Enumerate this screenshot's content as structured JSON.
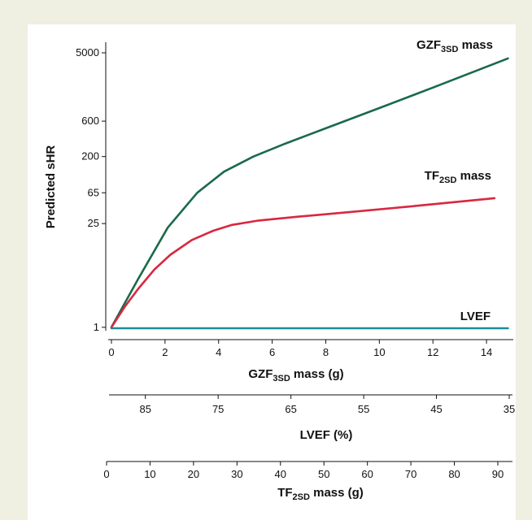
{
  "chart_data": {
    "type": "line",
    "title": "",
    "ylabel": "Predicted sHR",
    "yscale": "log",
    "yticks": [
      1,
      25,
      65,
      200,
      600,
      5000
    ],
    "grid": false,
    "axes": [
      {
        "id": "gzf",
        "label_main": "GZF",
        "label_sub": "3SD",
        "label_rest": " mass (g)",
        "min": 0,
        "max": 15,
        "ticks": [
          0,
          2,
          4,
          6,
          8,
          10,
          12,
          14
        ]
      },
      {
        "id": "lvef",
        "label_main": "LVEF (%)",
        "label_sub": "",
        "label_rest": "",
        "min": 90,
        "max": 35,
        "ticks": [
          85,
          75,
          65,
          55,
          45,
          35
        ]
      },
      {
        "id": "tf",
        "label_main": "TF",
        "label_sub": "2SD",
        "label_rest": " mass (g)",
        "min": 0,
        "max": 92,
        "ticks": [
          0,
          10,
          20,
          30,
          40,
          50,
          60,
          70,
          80,
          90
        ]
      }
    ],
    "series": [
      {
        "label_main": "GZF",
        "label_sub": "3SD",
        "label_rest": " mass",
        "color": "#1a6a4a",
        "x": [
          0,
          1,
          2.1,
          3.2,
          4.2,
          5.3,
          6.5,
          8,
          10,
          12,
          14.8
        ],
        "y": [
          1,
          4.5,
          22,
          65,
          125,
          200,
          300,
          480,
          900,
          1700,
          4200
        ]
      },
      {
        "label_main": "TF",
        "label_sub": "2SD",
        "label_rest": " mass",
        "color": "#d8283f",
        "x": [
          0,
          0.5,
          1,
          1.6,
          2.2,
          3,
          3.8,
          4.5,
          5.5,
          7,
          9,
          11,
          14.3
        ],
        "y": [
          1,
          1.9,
          3.3,
          6,
          9.5,
          15,
          20,
          24,
          27.5,
          31,
          36,
          42,
          55
        ]
      },
      {
        "label_main": "LVEF",
        "label_sub": "",
        "label_rest": "",
        "color": "#1b8e96",
        "x": [
          0,
          14.8
        ],
        "y": [
          0.97,
          0.97
        ]
      }
    ]
  }
}
